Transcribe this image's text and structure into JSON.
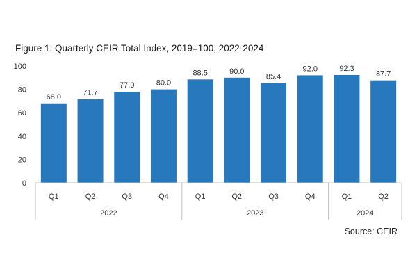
{
  "title": "Figure 1: Quarterly CEIR Total Index, 2019=100, 2022-2024",
  "source": "Source: CEIR",
  "colors": {
    "bar": "#2878BE",
    "axis": "#BFBFBF",
    "text": "#333333"
  },
  "chart_data": {
    "type": "bar",
    "title": "Figure 1: Quarterly CEIR Total Index, 2019=100, 2022-2024",
    "xlabel": "",
    "ylabel": "",
    "ylim": [
      0,
      100
    ],
    "yticks": [
      0,
      20,
      40,
      60,
      80,
      100
    ],
    "grid": false,
    "legend": "none",
    "categories": [
      "Q1",
      "Q2",
      "Q3",
      "Q4",
      "Q1",
      "Q2",
      "Q3",
      "Q4",
      "Q1",
      "Q2"
    ],
    "groups": [
      {
        "label": "2022",
        "count": 4
      },
      {
        "label": "2023",
        "count": 4
      },
      {
        "label": "2024",
        "count": 2
      }
    ],
    "values": [
      68.0,
      71.7,
      77.9,
      80.0,
      88.5,
      90.0,
      85.4,
      92.0,
      92.3,
      87.7
    ],
    "value_labels": [
      "68.0",
      "71.7",
      "77.9",
      "80.0",
      "88.5",
      "90.0",
      "85.4",
      "92.0",
      "92.3",
      "87.7"
    ]
  }
}
